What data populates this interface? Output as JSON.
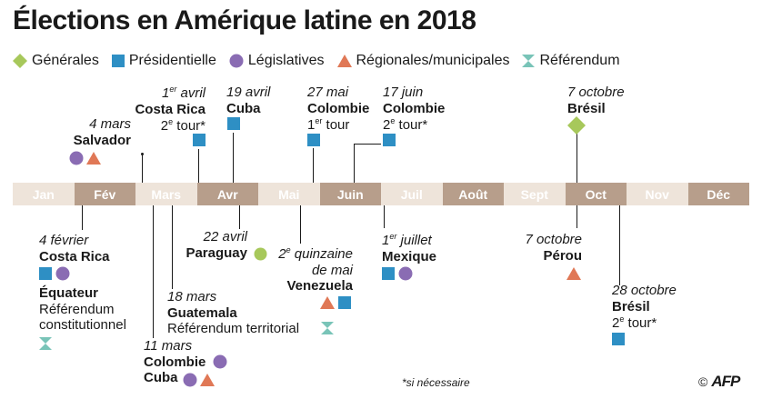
{
  "title": "Élections en Amérique latine en 2018",
  "colors": {
    "generales": "#a7c85b",
    "presidentielle": "#2e8fc4",
    "legislatives": "#8a6cb3",
    "regionales": "#e07856",
    "referendum": "#79c4b8"
  },
  "legend": {
    "generales": "Générales",
    "presidentielle": "Présidentielle",
    "legislatives": "Législatives",
    "regionales": "Régionales/municipales",
    "referendum": "Référendum"
  },
  "months": [
    "Jan",
    "Fév",
    "Mars",
    "Avr",
    "Mai",
    "Juin",
    "Juil",
    "Août",
    "Sept",
    "Oct",
    "Nov",
    "Déc"
  ],
  "events": {
    "crica1": {
      "date_a": "1",
      "date_sup": "er",
      "date_b": " avril",
      "place": "Costa Rica",
      "tour_a": "2",
      "tour_sup": "e",
      "tour_b": " tour*"
    },
    "cuba1": {
      "date": "19 avril",
      "place": "Cuba"
    },
    "col1": {
      "date": "27 mai",
      "place": "Colombie",
      "tour_a": "1",
      "tour_sup": "er",
      "tour_b": " tour"
    },
    "col2": {
      "date": "17 juin",
      "place": "Colombie",
      "tour_a": "2",
      "tour_sup": "e",
      "tour_b": " tour*"
    },
    "bresil1": {
      "date": "7 octobre",
      "place": "Brésil"
    },
    "salvador": {
      "date": "4 mars",
      "place": "Salvador"
    },
    "crica2": {
      "date": "4 février",
      "place": "Costa Rica"
    },
    "equateur": {
      "place": "Équateur",
      "line1": "Référendum",
      "line2": "constitutionnel"
    },
    "paraguay": {
      "date": "22 avril",
      "place": "Paraguay"
    },
    "guatemala": {
      "date": "18 mars",
      "place": "Guatemala",
      "detail": "Référendum territorial"
    },
    "colcuba": {
      "date": "11 mars",
      "place1": "Colombie",
      "place2": "Cuba"
    },
    "venezuela": {
      "date_a": "2",
      "date_sup": "e",
      "date_b": " quinzaine",
      "date2": "de mai",
      "place": "Venezuela"
    },
    "mexique": {
      "date_a": "1",
      "date_sup": "er",
      "date_b": " juillet",
      "place": "Mexique"
    },
    "perou": {
      "date": "7 octobre",
      "place": "Pérou"
    },
    "bresil2": {
      "date": "28 octobre",
      "place": "Brésil",
      "tour_a": "2",
      "tour_sup": "e",
      "tour_b": " tour*"
    }
  },
  "note": "*si nécessaire",
  "credit": {
    "symbol": "©",
    "brand": "AFP"
  }
}
